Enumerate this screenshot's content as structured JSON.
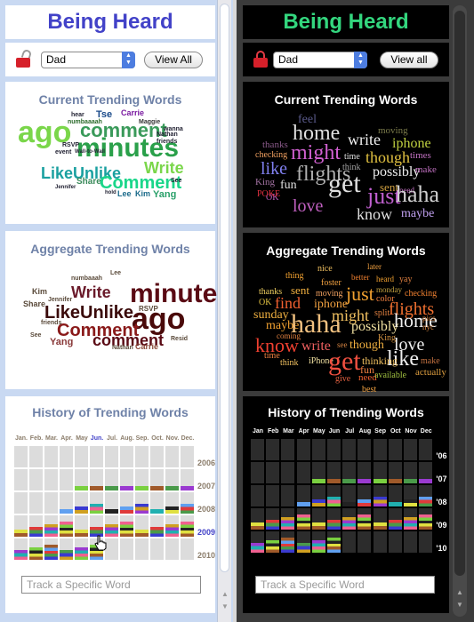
{
  "light": {
    "title": "Being Heard",
    "lock_icon": "lock-open-icon",
    "select_value": "Dad",
    "view_all": "View All",
    "current_header": "Current Trending Words",
    "aggregate_header": "Aggregate Trending Words",
    "history_header": "History of Trending Words",
    "months": [
      "Jan.",
      "Feb.",
      "Mar.",
      "Apr.",
      "May",
      "Jun.",
      "Jul.",
      "Aug.",
      "Sep.",
      "Oct.",
      "Nov.",
      "Dec."
    ],
    "selected_month": "Jun.",
    "years": [
      "2006",
      "2007",
      "2008",
      "2009",
      "2010"
    ],
    "selected_year": "2009",
    "track_placeholder": "Track a Specific Word",
    "current_words": [
      "hear",
      "Tse",
      "Carrie",
      "numbaaaah",
      "Maggie",
      "ago",
      "comment",
      "wanna",
      "minutes",
      "friends",
      "Nathan",
      "RSVP",
      "event",
      "LikeUnlike",
      "Write",
      "Wall-to-Wall",
      "Share",
      "Comment",
      "Jennifer",
      "Lee",
      "Kim",
      "Yang",
      "hold",
      "See"
    ],
    "aggregate_words": [
      "Lee",
      "numbaaah",
      "Kim",
      "Write",
      "minutes",
      "Jennifer",
      "Share",
      "LikeUnlike",
      "ago",
      "Comment",
      "RSVP",
      "Yang",
      "comment",
      "Resid",
      "Nathan",
      "Carrie",
      "See",
      "friends"
    ]
  },
  "dark": {
    "title": "Being Heard",
    "lock_icon": "lock-closed-icon",
    "select_value": "Dad",
    "view_all": "View all",
    "current_header": "Current Trending Words",
    "aggregate_header": "Aggregate Trending Words",
    "history_header": "History of Trending Words",
    "months": [
      "Jan",
      "Feb",
      "Mar",
      "Apr",
      "May",
      "Jun",
      "Jul",
      "Aug",
      "Sep",
      "Oct",
      "Nov",
      "Dec"
    ],
    "years": [
      "'06",
      "'07",
      "'08",
      "'09",
      "'10"
    ],
    "track_placeholder": "Track a Specific Word",
    "current_words": [
      "feel",
      "home",
      "moving",
      "write",
      "thanks",
      "might",
      "iphone",
      "checking",
      "time",
      "though",
      "times",
      "like",
      "flights",
      "think",
      "possibly",
      "make",
      "King",
      "get",
      "sent",
      "need",
      "fun",
      "OK",
      "POKE",
      "just",
      "haha",
      "love",
      "know",
      "maybe"
    ],
    "aggregate_words": [
      "nice",
      "later",
      "thing",
      "better",
      "heard",
      "yay",
      "sent",
      "foster",
      "monday",
      "thanks",
      "just",
      "checking",
      "OK",
      "find",
      "moving",
      "color",
      "flights",
      "iphone",
      "sunday",
      "might",
      "split",
      "home",
      "maybe",
      "haha",
      "possibly",
      "pics",
      "coming",
      "nyc",
      "know",
      "write",
      "King",
      "love",
      "time",
      "think",
      "see",
      "though",
      "like",
      "iPhone",
      "get",
      "thinking",
      "make",
      "fun",
      "need",
      "available",
      "actually",
      "give",
      "best"
    ]
  }
}
